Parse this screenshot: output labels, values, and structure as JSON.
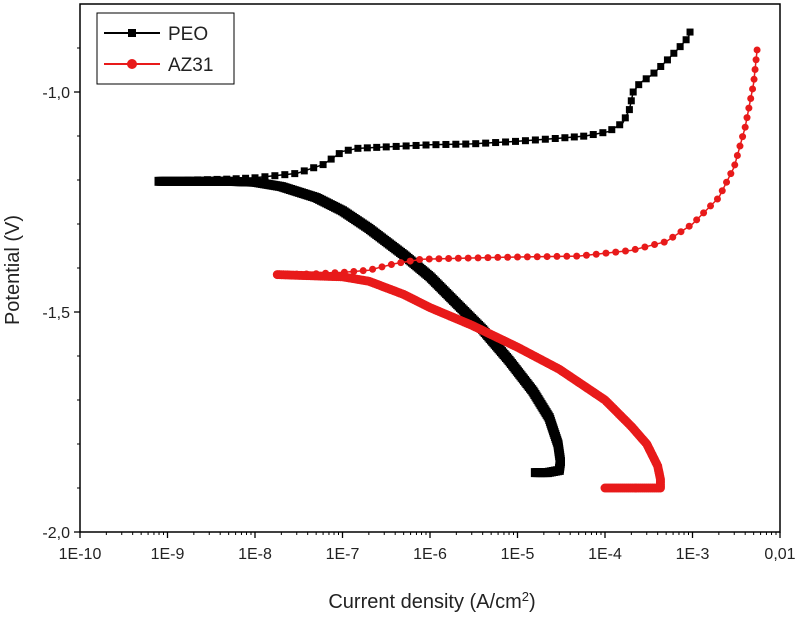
{
  "chart_data": {
    "type": "line",
    "xlabel": "Current density (A/cm",
    "xlabel_sup": "2",
    "xlabel_end": ")",
    "ylabel": "Potential (V)",
    "xscale": "log",
    "xlim": [
      1e-10,
      0.01
    ],
    "ylim": [
      -2.0,
      -0.8
    ],
    "xtick_labels": [
      "1E-10",
      "1E-9",
      "1E-8",
      "1E-7",
      "1E-6",
      "1E-5",
      "1E-4",
      "1E-3",
      "0,01"
    ],
    "ytick_labels": [
      "-1,0",
      "-1,5",
      "-2,0"
    ],
    "legend_position": "top-left",
    "series": [
      {
        "name": "PEO",
        "color": "#000000",
        "marker": "square",
        "anodic": [
          [
            8e-10,
            -1.203
          ],
          [
            2e-09,
            -1.2
          ],
          [
            5e-09,
            -1.198
          ],
          [
            1e-08,
            -1.195
          ],
          [
            3e-08,
            -1.185
          ],
          [
            6e-08,
            -1.165
          ],
          [
            1e-07,
            -1.135
          ],
          [
            1.5e-07,
            -1.128
          ],
          [
            3e-07,
            -1.125
          ],
          [
            1e-06,
            -1.12
          ],
          [
            3e-06,
            -1.118
          ],
          [
            1e-05,
            -1.112
          ],
          [
            3e-05,
            -1.105
          ],
          [
            6e-05,
            -1.1
          ],
          [
            0.00011,
            -1.09
          ],
          [
            0.00016,
            -1.07
          ],
          [
            0.00019,
            -1.04
          ],
          [
            0.00021,
            -1.0
          ],
          [
            0.00025,
            -0.98
          ],
          [
            0.00035,
            -0.96
          ],
          [
            0.0005,
            -0.93
          ],
          [
            0.0007,
            -0.9
          ],
          [
            0.0009,
            -0.875
          ],
          [
            0.00095,
            -0.86
          ]
        ],
        "cathodic": [
          [
            8e-10,
            -1.203
          ],
          [
            5e-09,
            -1.203
          ],
          [
            1e-08,
            -1.205
          ],
          [
            2e-08,
            -1.215
          ],
          [
            5e-08,
            -1.24
          ],
          [
            1e-07,
            -1.27
          ],
          [
            2e-07,
            -1.31
          ],
          [
            5e-07,
            -1.37
          ],
          [
            1e-06,
            -1.42
          ],
          [
            2e-06,
            -1.48
          ],
          [
            4e-06,
            -1.54
          ],
          [
            8e-06,
            -1.61
          ],
          [
            1.5e-05,
            -1.68
          ],
          [
            2.3e-05,
            -1.74
          ],
          [
            2.9e-05,
            -1.8
          ],
          [
            3.1e-05,
            -1.84
          ],
          [
            3e-05,
            -1.86
          ],
          [
            2.2e-05,
            -1.865
          ],
          [
            1.6e-05,
            -1.865
          ]
        ]
      },
      {
        "name": "AZ31",
        "color": "#e81a1a",
        "marker": "circle",
        "anodic": [
          [
            1.8e-08,
            -1.415
          ],
          [
            5e-08,
            -1.413
          ],
          [
            1e-07,
            -1.41
          ],
          [
            2e-07,
            -1.405
          ],
          [
            4e-07,
            -1.39
          ],
          [
            8e-07,
            -1.38
          ],
          [
            2e-06,
            -1.378
          ],
          [
            1e-05,
            -1.375
          ],
          [
            5e-05,
            -1.373
          ],
          [
            0.0002,
            -1.36
          ],
          [
            0.0005,
            -1.34
          ],
          [
            0.001,
            -1.3
          ],
          [
            0.002,
            -1.24
          ],
          [
            0.003,
            -1.17
          ],
          [
            0.004,
            -1.08
          ],
          [
            0.005,
            -0.98
          ],
          [
            0.0055,
            -0.9
          ]
        ],
        "cathodic": [
          [
            1.8e-08,
            -1.415
          ],
          [
            1e-07,
            -1.42
          ],
          [
            2e-07,
            -1.43
          ],
          [
            5e-07,
            -1.46
          ],
          [
            1e-06,
            -1.49
          ],
          [
            3e-06,
            -1.53
          ],
          [
            1e-05,
            -1.58
          ],
          [
            3e-05,
            -1.63
          ],
          [
            0.0001,
            -1.7
          ],
          [
            0.0002,
            -1.76
          ],
          [
            0.0003,
            -1.8
          ],
          [
            0.0004,
            -1.85
          ],
          [
            0.00043,
            -1.88
          ],
          [
            0.00043,
            -1.9
          ],
          [
            0.0001,
            -1.9
          ]
        ]
      }
    ]
  }
}
